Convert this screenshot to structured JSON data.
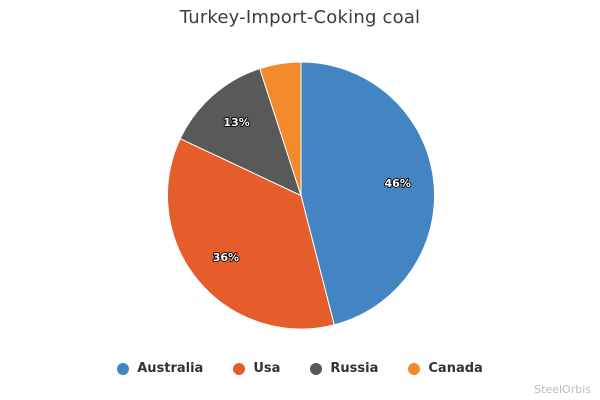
{
  "watermark": "SteelOrbis",
  "chart_data": {
    "type": "pie",
    "title": "Turkey-Import-Coking coal",
    "start_angle_deg": 0,
    "direction": "clockwise",
    "legend_position": "bottom",
    "data_label_format": "{value}%",
    "slices": [
      {
        "label": "Australia",
        "value": 46,
        "color": "#4285C2",
        "data_label": "46%",
        "label_visible": true
      },
      {
        "label": "Usa",
        "value": 36,
        "color": "#E55D2A",
        "data_label": "36%",
        "label_visible": true
      },
      {
        "label": "Russia",
        "value": 13,
        "color": "#595959",
        "data_label": "13%",
        "label_visible": true
      },
      {
        "label": "Canada",
        "value": 5,
        "color": "#F28A2B",
        "data_label": "",
        "label_visible": false
      }
    ]
  },
  "colors": {
    "background": "#FFFFFF",
    "title_text": "#3D3D3D",
    "legend_text": "#333333",
    "slice_border": "#FFFFFF",
    "data_label_fill": "#FFFFFF",
    "data_label_outline": "#000000",
    "watermark_text": "#BBBBBB"
  }
}
